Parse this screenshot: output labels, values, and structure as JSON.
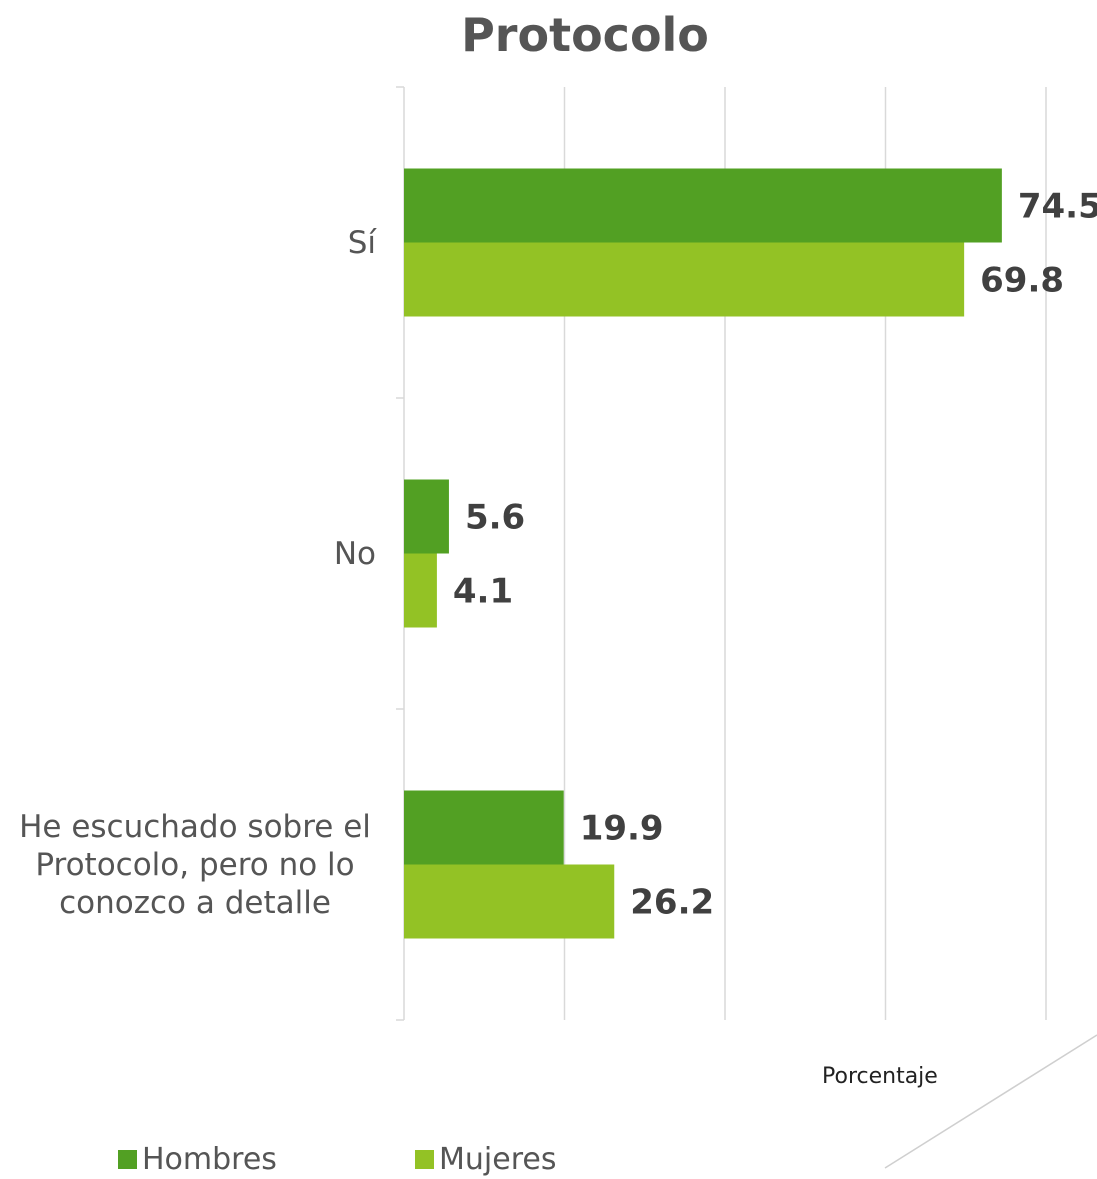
{
  "chart_data": {
    "type": "bar",
    "orientation": "horizontal",
    "title": "Protocolo",
    "xlabel": "Porcentaje",
    "ylabel": "",
    "xlim": [
      0,
      80
    ],
    "grid": true,
    "legend_position": "bottom",
    "categories": [
      "Sí",
      "No",
      "He escuchado sobre el Protocolo, pero no lo conozco a detalle"
    ],
    "series": [
      {
        "name": "Hombres",
        "color": "#52a023",
        "values": [
          74.5,
          5.6,
          19.9
        ]
      },
      {
        "name": "Mujeres",
        "color": "#93c225",
        "values": [
          69.8,
          4.1,
          26.2
        ]
      }
    ]
  }
}
